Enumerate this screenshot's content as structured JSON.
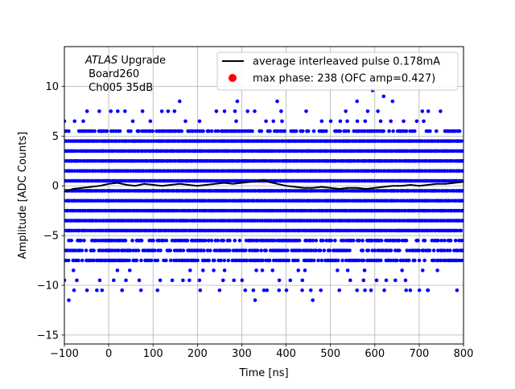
{
  "chart_data": {
    "type": "scatter",
    "xlabel": "Time [ns]",
    "ylabel": "Amplitude [ADC Counts]",
    "xlim": [
      -100,
      800
    ],
    "ylim": [
      -15.9,
      14
    ],
    "xticks": [
      -100,
      0,
      100,
      200,
      300,
      400,
      500,
      600,
      700,
      800
    ],
    "yticks": [
      -15,
      -10,
      -5,
      0,
      5,
      10
    ],
    "grid": true,
    "legend_position": "top-right",
    "annotation": {
      "experiment": "ATLAS",
      "experiment_suffix": " Upgrade",
      "line2": " Board260",
      "line3": " Ch005 35dB"
    },
    "series": [
      {
        "name": "average interleaved pulse 0.178mA",
        "kind": "line",
        "color": "#000000",
        "x": [
          -100,
          -80,
          -60,
          -40,
          -20,
          0,
          20,
          40,
          60,
          80,
          100,
          120,
          140,
          160,
          180,
          200,
          220,
          240,
          260,
          280,
          300,
          320,
          340,
          350,
          360,
          380,
          400,
          420,
          440,
          460,
          480,
          500,
          520,
          540,
          560,
          580,
          600,
          620,
          640,
          660,
          680,
          700,
          720,
          740,
          760,
          780,
          800
        ],
        "y": [
          -0.6,
          -0.3,
          -0.2,
          -0.1,
          0.0,
          0.2,
          0.3,
          0.1,
          0.0,
          0.2,
          0.1,
          0.0,
          0.1,
          0.2,
          0.1,
          0.0,
          0.1,
          0.2,
          0.3,
          0.2,
          0.3,
          0.4,
          0.5,
          0.6,
          0.4,
          0.2,
          0.0,
          -0.1,
          -0.2,
          -0.2,
          -0.1,
          -0.2,
          -0.3,
          -0.2,
          -0.2,
          -0.3,
          -0.2,
          -0.1,
          0.0,
          0.0,
          0.1,
          0.0,
          0.1,
          0.2,
          0.2,
          0.3,
          0.4
        ]
      },
      {
        "name": "max phase: 238 (OFC amp=0.427)",
        "kind": "marker",
        "color": "#ff0000",
        "x": [],
        "y": []
      },
      {
        "name": "samples",
        "kind": "scatter",
        "color": "#0000ff",
        "x_range": [
          -100,
          800
        ],
        "dense_levels": [
          -7.5,
          -6.5,
          -5.5,
          -4.5,
          -3.5,
          -2.5,
          -1.5,
          -0.5,
          0.5,
          1.5,
          2.5,
          3.5,
          4.5,
          5.5
        ],
        "sparse_levels": [
          -10.5,
          -9.5,
          -8.5,
          6.5,
          7.5
        ],
        "outliers_x": [
          -90,
          -15,
          330,
          460,
          595,
          620,
          680,
          720,
          30,
          110,
          160,
          250,
          290,
          350,
          380,
          520,
          560,
          640
        ],
        "outliers_y": [
          -11.5,
          -10.5,
          -11.5,
          -11.5,
          9.6,
          9.0,
          -10.5,
          -10.5,
          -10.5,
          -10.5,
          8.5,
          -10.5,
          8.5,
          -10.5,
          8.5,
          -10.5,
          8.5,
          8.5
        ]
      }
    ]
  }
}
